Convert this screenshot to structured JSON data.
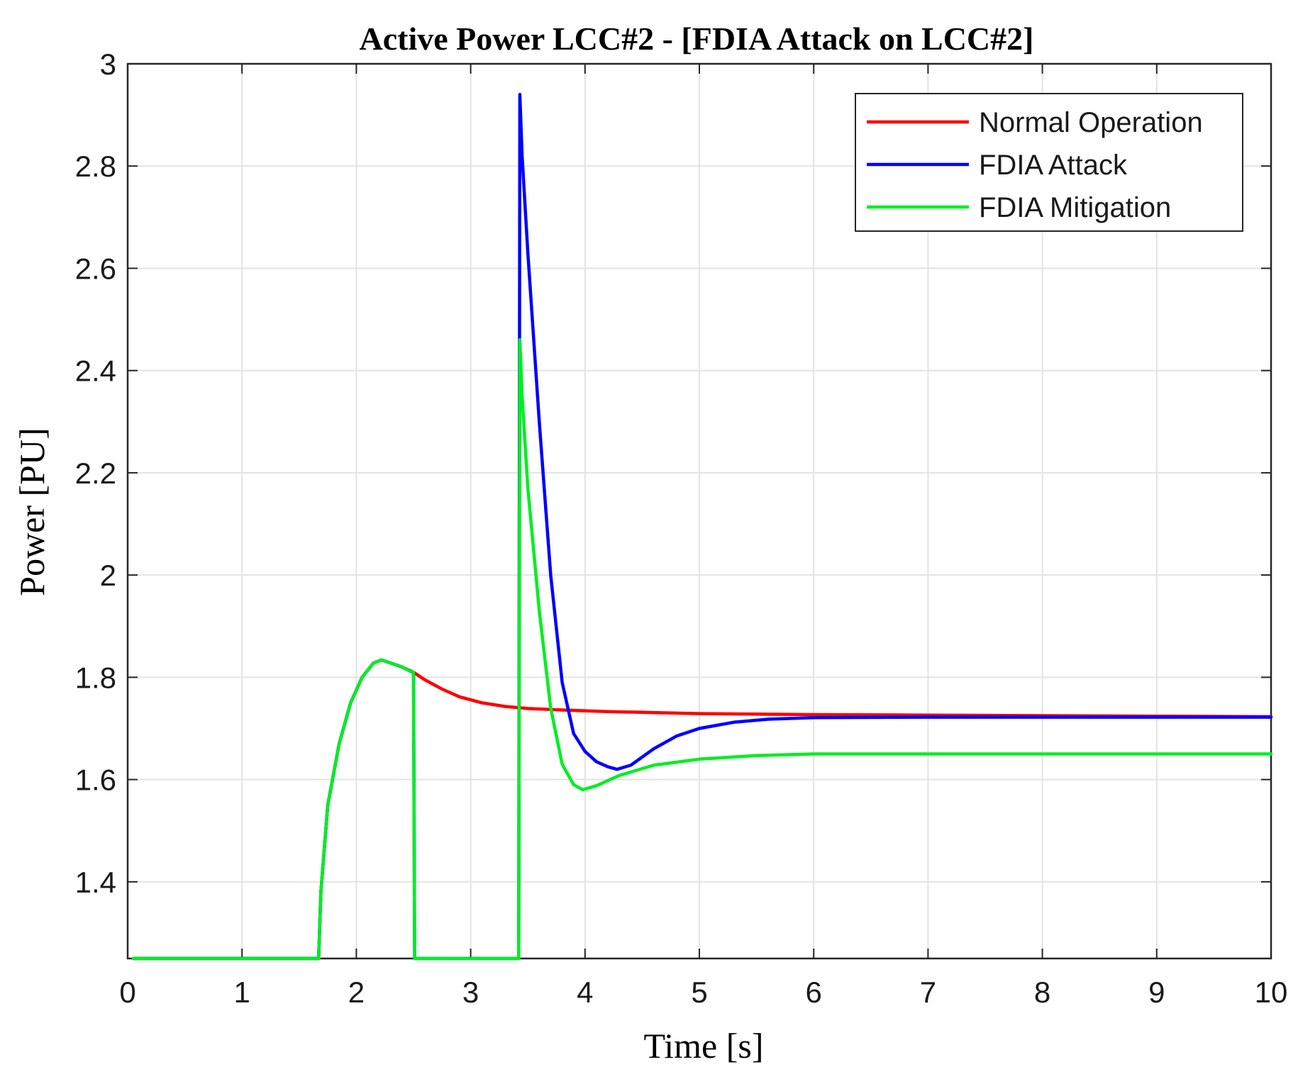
{
  "chart_data": {
    "type": "line",
    "title": "Active Power LCC#2 - [FDIA Attack on LCC#2]",
    "xlabel": "Time [s]",
    "ylabel": "Power [PU]",
    "xlim": [
      0,
      10
    ],
    "ylim": [
      1.25,
      3
    ],
    "xticks": [
      0,
      1,
      2,
      3,
      4,
      5,
      6,
      7,
      8,
      9,
      10
    ],
    "xtick_labels": [
      "0",
      "1",
      "2",
      "3",
      "4",
      "5",
      "6",
      "7",
      "8",
      "9",
      "10"
    ],
    "yticks": [
      1.4,
      1.6,
      1.8,
      2,
      2.2,
      2.4,
      2.6,
      2.8,
      3
    ],
    "ytick_labels": [
      "1.4",
      "1.6",
      "1.8",
      "2",
      "2.2",
      "2.4",
      "2.6",
      "2.8",
      "3"
    ],
    "grid": true,
    "legend_position": "top-right",
    "series": [
      {
        "name": "Normal Operation",
        "color": "#ff0000",
        "x": [
          0.05,
          1.67,
          1.69,
          1.75,
          1.85,
          1.95,
          2.05,
          2.15,
          2.22,
          2.3,
          2.4,
          2.5,
          2.6,
          2.75,
          2.9,
          3.1,
          3.3,
          3.5,
          3.8,
          4.2,
          5,
          6,
          7,
          8,
          9,
          10
        ],
        "y": [
          1.25,
          1.25,
          1.38,
          1.55,
          1.67,
          1.75,
          1.8,
          1.828,
          1.834,
          1.828,
          1.82,
          1.81,
          1.795,
          1.777,
          1.762,
          1.75,
          1.743,
          1.739,
          1.736,
          1.733,
          1.729,
          1.727,
          1.726,
          1.725,
          1.724,
          1.723
        ]
      },
      {
        "name": "FDIA Attack",
        "color": "#0000ff",
        "x": [
          0.05,
          1.67,
          1.69,
          1.75,
          1.85,
          1.95,
          2.05,
          2.15,
          2.22,
          2.3,
          2.4,
          2.49,
          2.5,
          2.51,
          3.42,
          3.43,
          3.45,
          3.5,
          3.6,
          3.7,
          3.8,
          3.9,
          4.0,
          4.1,
          4.2,
          4.28,
          4.4,
          4.6,
          4.8,
          5.0,
          5.3,
          5.6,
          6.0,
          7.0,
          8.0,
          9.0,
          10.0
        ],
        "y": [
          1.25,
          1.25,
          1.38,
          1.55,
          1.67,
          1.75,
          1.8,
          1.828,
          1.834,
          1.828,
          1.82,
          1.81,
          1.81,
          1.25,
          1.25,
          2.94,
          2.82,
          2.63,
          2.3,
          2.0,
          1.79,
          1.69,
          1.655,
          1.635,
          1.625,
          1.62,
          1.628,
          1.66,
          1.685,
          1.7,
          1.712,
          1.718,
          1.721,
          1.722,
          1.722,
          1.722,
          1.722
        ]
      },
      {
        "name": "FDIA Mitigation",
        "color": "#00ee22",
        "x": [
          0.05,
          1.67,
          1.69,
          1.75,
          1.85,
          1.95,
          2.05,
          2.15,
          2.22,
          2.3,
          2.4,
          2.49,
          2.5,
          2.51,
          3.42,
          3.43,
          3.45,
          3.5,
          3.6,
          3.7,
          3.8,
          3.9,
          3.98,
          4.1,
          4.3,
          4.6,
          5.0,
          5.5,
          6.0,
          7.0,
          8.0,
          9.0,
          10.0
        ],
        "y": [
          1.25,
          1.25,
          1.38,
          1.55,
          1.67,
          1.75,
          1.8,
          1.828,
          1.834,
          1.828,
          1.82,
          1.81,
          1.81,
          1.25,
          1.25,
          2.46,
          2.35,
          2.17,
          1.93,
          1.74,
          1.63,
          1.59,
          1.58,
          1.588,
          1.608,
          1.628,
          1.64,
          1.647,
          1.65,
          1.65,
          1.65,
          1.65,
          1.65
        ]
      }
    ]
  }
}
